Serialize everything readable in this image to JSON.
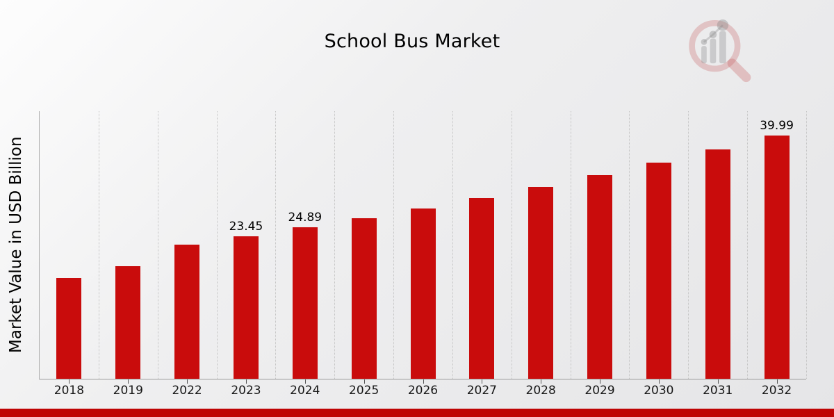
{
  "page": {
    "background_top_left": "#fdfdfd",
    "background_bottom_right": "#e5e5e7",
    "footer_bar_color": "#bf0404"
  },
  "branding": {
    "logo_icon": "magnifier-bar-chart-watermark",
    "logo_ring_color": "rgba(198,90,90,0.28)",
    "logo_bar_color": "rgba(135,135,135,0.32)"
  },
  "chart_data": {
    "type": "bar",
    "title": "School Bus Market",
    "xlabel": "",
    "ylabel": "Market Value in USD Billion",
    "units": "USD Billion",
    "categories": [
      "2018",
      "2019",
      "2022",
      "2023",
      "2024",
      "2025",
      "2026",
      "2027",
      "2028",
      "2029",
      "2030",
      "2031",
      "2032"
    ],
    "values": [
      16.6,
      18.5,
      22.1,
      23.45,
      24.89,
      26.41,
      28.02,
      29.73,
      31.55,
      33.48,
      35.52,
      37.69,
      39.99
    ],
    "bar_labels": [
      "",
      "",
      "",
      "23.45",
      "24.89",
      "",
      "",
      "",
      "",
      "",
      "",
      "",
      "39.99"
    ],
    "ylim": [
      0,
      44
    ],
    "bar_color": "#c90c0c",
    "grid": "vertical-dotted",
    "gridline_color": "#c3c3c3",
    "legend": "none"
  }
}
